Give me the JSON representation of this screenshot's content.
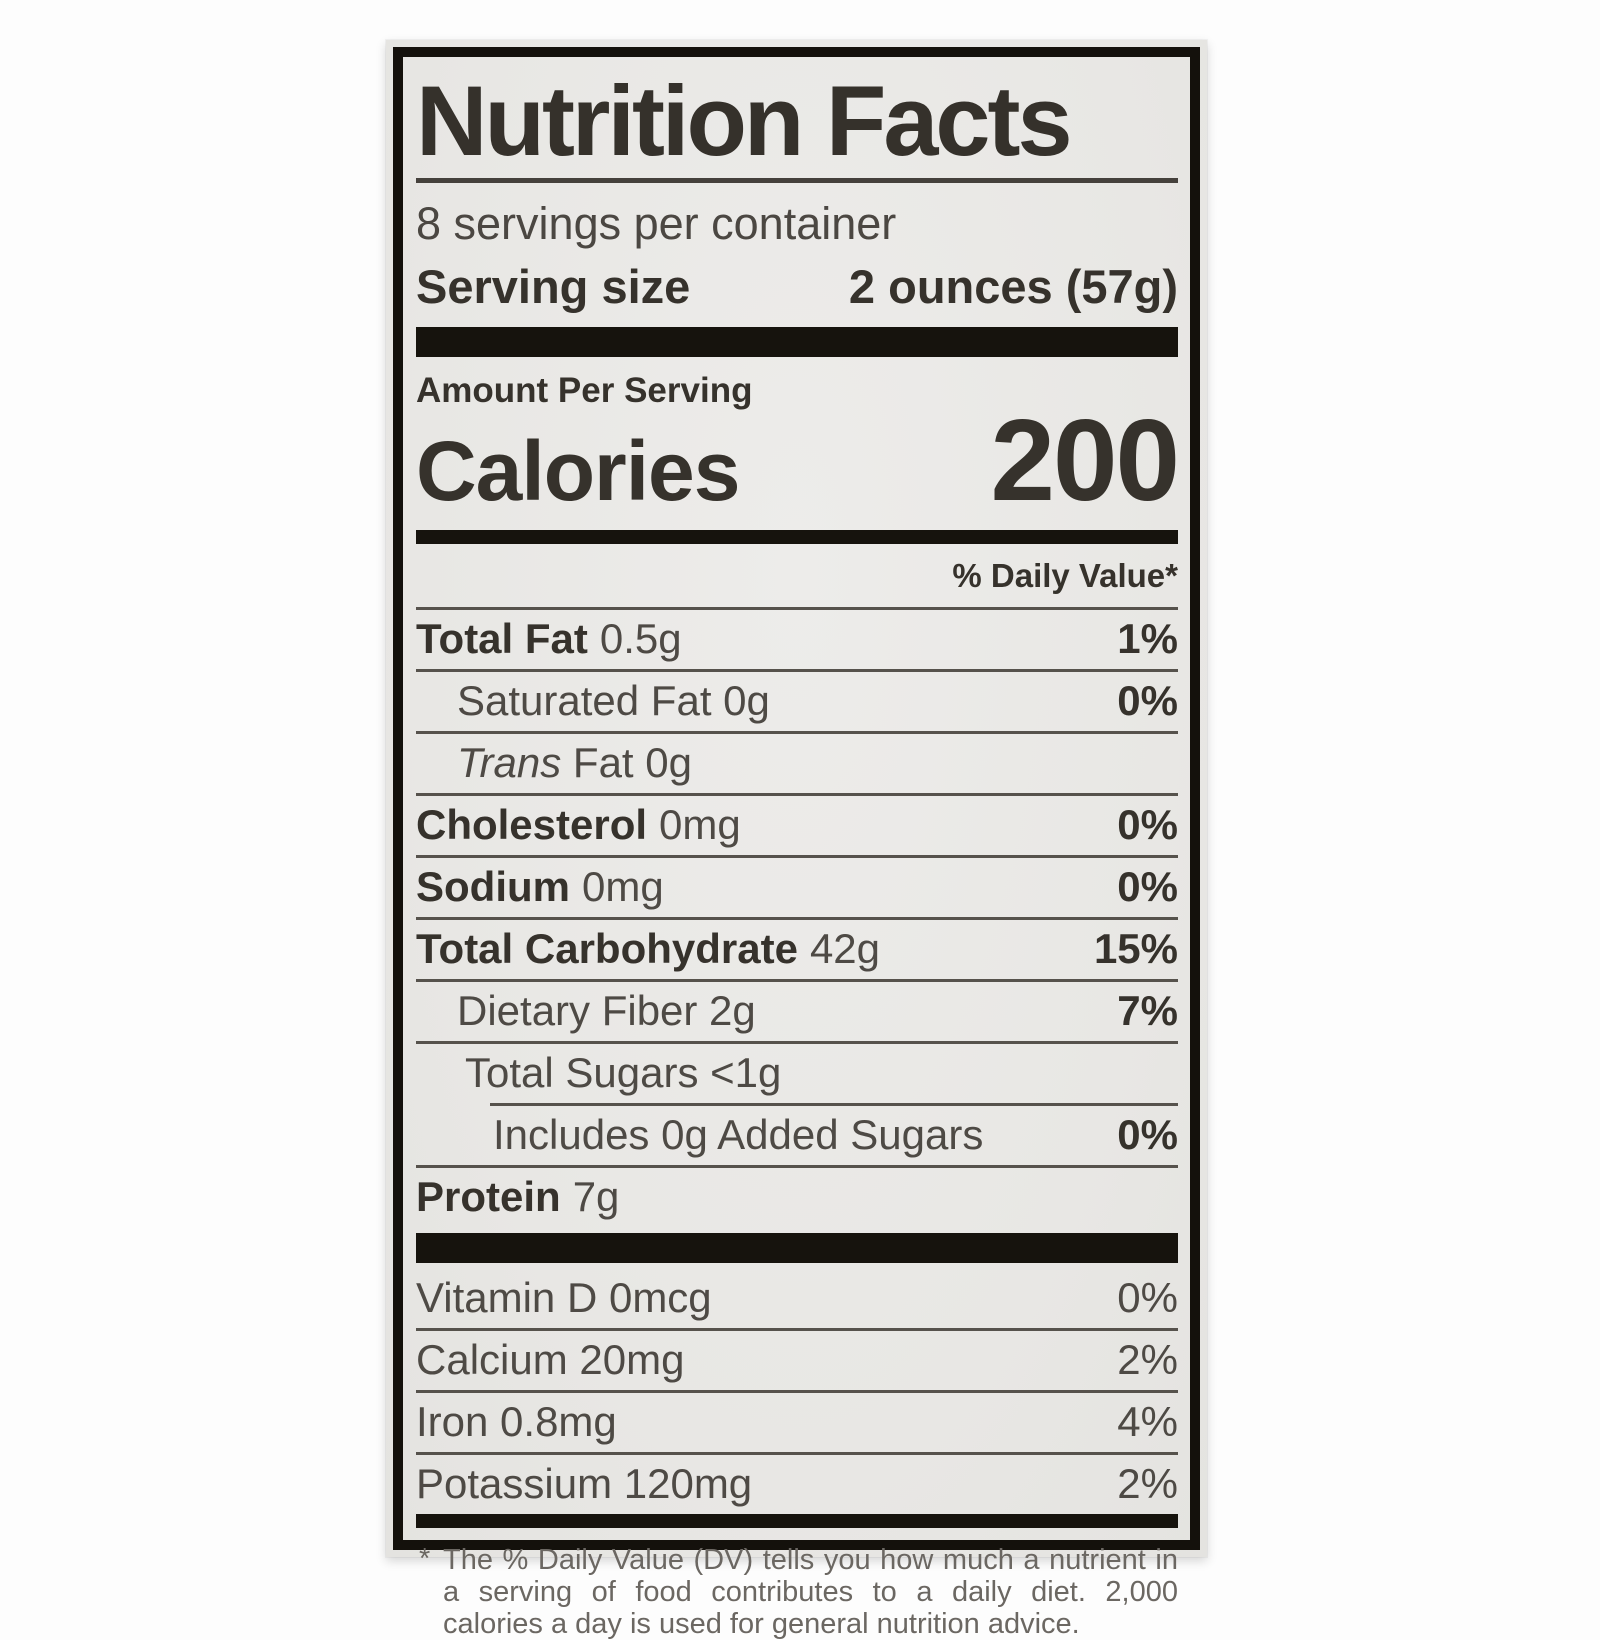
{
  "label": {
    "title": "Nutrition Facts",
    "servings_per_container": "8 servings per container",
    "serving_size_label": "Serving size",
    "serving_size_value": "2 ounces (57g)",
    "amount_per_serving": "Amount Per Serving",
    "calories_label": "Calories",
    "calories_value": "200",
    "daily_value_header": "% Daily Value*",
    "nutrients": [
      {
        "bold": "Total Fat",
        "amount": "0.5g",
        "dv": "1%",
        "dv_bold": true,
        "indent": 0,
        "rule": "none"
      },
      {
        "plain": "Saturated Fat 0g",
        "dv": "0%",
        "dv_bold": true,
        "indent": 1,
        "rule": "full"
      },
      {
        "italic": "Trans",
        "plain": " Fat 0g",
        "dv": "",
        "indent": 1,
        "rule": "full"
      },
      {
        "bold": "Cholesterol",
        "amount": "0mg",
        "dv": "0%",
        "dv_bold": true,
        "indent": 0,
        "rule": "full"
      },
      {
        "bold": "Sodium",
        "amount": "0mg",
        "dv": "0%",
        "dv_bold": true,
        "indent": 0,
        "rule": "full"
      },
      {
        "bold": "Total Carbohydrate",
        "amount": "42g",
        "dv": "15%",
        "dv_bold": true,
        "indent": 0,
        "rule": "full"
      },
      {
        "plain": "Dietary Fiber 2g",
        "dv": "7%",
        "dv_bold": true,
        "indent": 1,
        "rule": "full"
      },
      {
        "plain": "Total Sugars <1g",
        "dv": "",
        "indent": 2,
        "rule": "full"
      },
      {
        "plain": "Includes 0g Added Sugars",
        "dv": "0%",
        "dv_bold": true,
        "indent": 3,
        "rule": "indent"
      },
      {
        "bold": "Protein",
        "amount": "7g",
        "dv": "",
        "indent": 0,
        "rule": "full"
      }
    ],
    "micronutrients": [
      {
        "plain": "Vitamin D 0mcg",
        "dv": "0%",
        "rule": "none"
      },
      {
        "plain": "Calcium 20mg",
        "dv": "2%",
        "rule": "full"
      },
      {
        "plain": "Iron 0.8mg",
        "dv": "4%",
        "rule": "full"
      },
      {
        "plain": "Potassium 120mg",
        "dv": "2%",
        "rule": "full"
      }
    ],
    "footnote_marker": "*",
    "footnote": "The % Daily Value (DV) tells you how much a nutrient in a serving of food contributes to a daily diet. 2,000 calories a day is used for general nutrition advice."
  }
}
